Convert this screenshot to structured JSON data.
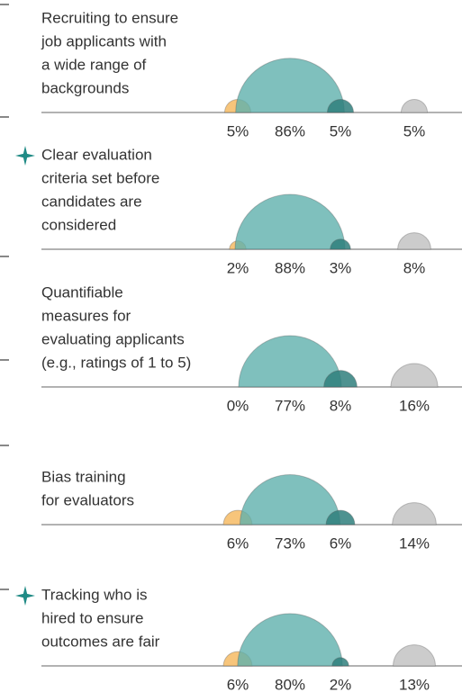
{
  "chart_data": {
    "type": "semicircle",
    "colors": [
      "#f5b75a",
      "#5fb0ad",
      "#2f7f7c",
      "#c6c6c6"
    ],
    "rows": [
      {
        "label": [
          "Recruiting to ensure",
          "job applicants with",
          "a wide range of",
          "backgrounds"
        ],
        "starred": false,
        "values": [
          5,
          86,
          5,
          5
        ],
        "value_labels": [
          "5%",
          "86%",
          "5%",
          "5%"
        ]
      },
      {
        "label": [
          "Clear evaluation",
          "criteria set before",
          "candidates are",
          "considered"
        ],
        "starred": true,
        "values": [
          2,
          88,
          3,
          8
        ],
        "value_labels": [
          "2%",
          "88%",
          "3%",
          "8%"
        ]
      },
      {
        "label": [
          "Quantifiable",
          "measures for",
          "evaluating applicants",
          "(e.g., ratings of 1 to 5)"
        ],
        "starred": false,
        "values": [
          0,
          77,
          8,
          16
        ],
        "value_labels": [
          "0%",
          "77%",
          "8%",
          "16%"
        ]
      },
      {
        "label": [
          "Bias training",
          "for evaluators"
        ],
        "starred": false,
        "values": [
          6,
          73,
          6,
          14
        ],
        "value_labels": [
          "6%",
          "73%",
          "6%",
          "14%"
        ]
      },
      {
        "label": [
          "Tracking who is",
          "hired to ensure",
          "outcomes are fair"
        ],
        "starred": true,
        "values": [
          6,
          80,
          2,
          13
        ],
        "value_labels": [
          "6%",
          "80%",
          "2%",
          "13%"
        ]
      }
    ]
  }
}
